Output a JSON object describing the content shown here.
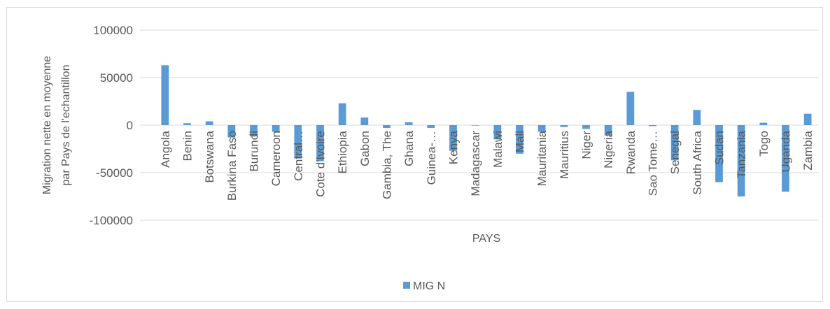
{
  "chart_data": {
    "type": "bar",
    "ylabel": [
      "Migration nette en moyenne",
      "par Pays de l'echantillon"
    ],
    "xlabel": "PAYS",
    "categories": [
      "Angola",
      "Benin",
      "Botswana",
      "Burkina Faso",
      "Burundi",
      "Cameroon",
      "Central…",
      "Cote d'Ivoire",
      "Ethiopia",
      "Gabon",
      "Gambia, The",
      "Ghana",
      "Guinea-…",
      "Kenya",
      "Madagascar",
      "Malawi",
      "Mali",
      "Mauritania",
      "Mauritius",
      "Niger",
      "Nigeria",
      "Rwanda",
      "Sao Tome…",
      "Senegal",
      "South Africa",
      "Sudan",
      "Tanzania",
      "Togo",
      "Uganda",
      "Zambia"
    ],
    "series": [
      {
        "name": "MIG N",
        "color": "#5b9bd5",
        "values": [
          63000,
          2000,
          4000,
          -13000,
          -12000,
          -7000,
          -35000,
          -38000,
          23000,
          8000,
          -3000,
          3000,
          -3000,
          -27000,
          -500,
          -15000,
          -30000,
          -7000,
          -2000,
          -4000,
          -11000,
          35000,
          -1000,
          -37000,
          16000,
          -60000,
          -75000,
          2500,
          -70000,
          12000
        ]
      }
    ],
    "ylim": [
      -100000,
      100000
    ],
    "yticks": [
      -100000,
      -50000,
      0,
      50000,
      100000
    ],
    "grid": true,
    "legend": "bottom"
  }
}
